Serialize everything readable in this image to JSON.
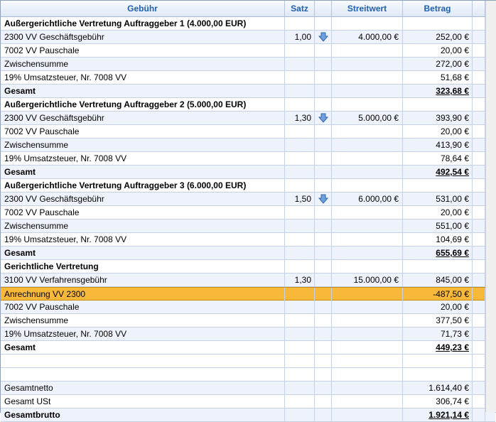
{
  "header": {
    "col_gebuehr": "Gebühr",
    "col_satz": "Satz",
    "col_streitwert": "Streitwert",
    "col_betrag": "Betrag"
  },
  "rows": [
    {
      "type": "section",
      "gebuehr": "Außergerichtliche Vertretung Auftraggeber 1 (4.000,00 EUR)",
      "satz": "",
      "arrow": false,
      "streitwert": "",
      "betrag": ""
    },
    {
      "type": "item",
      "gebuehr": "2300 VV Geschäftsgebühr",
      "satz": "1,00",
      "arrow": true,
      "streitwert": "4.000,00 €",
      "betrag": "252,00 €"
    },
    {
      "type": "item",
      "gebuehr": "7002 VV Pauschale",
      "satz": "",
      "arrow": false,
      "streitwert": "",
      "betrag": "20,00 €"
    },
    {
      "type": "item",
      "gebuehr": "Zwischensumme",
      "satz": "",
      "arrow": false,
      "streitwert": "",
      "betrag": "272,00 €"
    },
    {
      "type": "item",
      "gebuehr": "19% Umsatzsteuer, Nr. 7008 VV",
      "satz": "",
      "arrow": false,
      "streitwert": "",
      "betrag": "51,68 €"
    },
    {
      "type": "total",
      "gebuehr": "Gesamt",
      "satz": "",
      "arrow": false,
      "streitwert": "",
      "betrag": "323,68 €"
    },
    {
      "type": "section",
      "gebuehr": "Außergerichtliche Vertretung Auftraggeber 2 (5.000,00 EUR)",
      "satz": "",
      "arrow": false,
      "streitwert": "",
      "betrag": ""
    },
    {
      "type": "item",
      "gebuehr": "2300 VV Geschäftsgebühr",
      "satz": "1,30",
      "arrow": true,
      "streitwert": "5.000,00 €",
      "betrag": "393,90 €"
    },
    {
      "type": "item",
      "gebuehr": "7002 VV Pauschale",
      "satz": "",
      "arrow": false,
      "streitwert": "",
      "betrag": "20,00 €"
    },
    {
      "type": "item",
      "gebuehr": "Zwischensumme",
      "satz": "",
      "arrow": false,
      "streitwert": "",
      "betrag": "413,90 €"
    },
    {
      "type": "item",
      "gebuehr": "19% Umsatzsteuer, Nr. 7008 VV",
      "satz": "",
      "arrow": false,
      "streitwert": "",
      "betrag": "78,64 €"
    },
    {
      "type": "total",
      "gebuehr": "Gesamt",
      "satz": "",
      "arrow": false,
      "streitwert": "",
      "betrag": "492,54 €"
    },
    {
      "type": "section",
      "gebuehr": "Außergerichtliche Vertretung Auftraggeber 3 (6.000,00 EUR)",
      "satz": "",
      "arrow": false,
      "streitwert": "",
      "betrag": ""
    },
    {
      "type": "item",
      "gebuehr": "2300 VV Geschäftsgebühr",
      "satz": "1,50",
      "arrow": true,
      "streitwert": "6.000,00 €",
      "betrag": "531,00 €"
    },
    {
      "type": "item",
      "gebuehr": "7002 VV Pauschale",
      "satz": "",
      "arrow": false,
      "streitwert": "",
      "betrag": "20,00 €"
    },
    {
      "type": "item",
      "gebuehr": "Zwischensumme",
      "satz": "",
      "arrow": false,
      "streitwert": "",
      "betrag": "551,00 €"
    },
    {
      "type": "item",
      "gebuehr": "19% Umsatzsteuer, Nr. 7008 VV",
      "satz": "",
      "arrow": false,
      "streitwert": "",
      "betrag": "104,69 €"
    },
    {
      "type": "total",
      "gebuehr": "Gesamt",
      "satz": "",
      "arrow": false,
      "streitwert": "",
      "betrag": "655,69 €"
    },
    {
      "type": "section",
      "gebuehr": "Gerichtliche Vertretung",
      "satz": "",
      "arrow": false,
      "streitwert": "",
      "betrag": ""
    },
    {
      "type": "item",
      "gebuehr": "3100 VV Verfahrensgebühr",
      "satz": "1,30",
      "arrow": false,
      "streitwert": "15.000,00 €",
      "betrag": "845,00 €"
    },
    {
      "type": "highlight",
      "gebuehr": "Anrechnung VV 2300",
      "satz": "",
      "arrow": false,
      "streitwert": "",
      "betrag": "-487,50 €"
    },
    {
      "type": "item",
      "gebuehr": "7002 VV Pauschale",
      "satz": "",
      "arrow": false,
      "streitwert": "",
      "betrag": "20,00 €"
    },
    {
      "type": "item",
      "gebuehr": "Zwischensumme",
      "satz": "",
      "arrow": false,
      "streitwert": "",
      "betrag": "377,50 €"
    },
    {
      "type": "item",
      "gebuehr": "19% Umsatzsteuer, Nr. 7008 VV",
      "satz": "",
      "arrow": false,
      "streitwert": "",
      "betrag": "71,73 €"
    },
    {
      "type": "total",
      "gebuehr": "Gesamt",
      "satz": "",
      "arrow": false,
      "streitwert": "",
      "betrag": "449,23 €"
    },
    {
      "type": "blank",
      "gebuehr": "",
      "satz": "",
      "arrow": false,
      "streitwert": "",
      "betrag": ""
    },
    {
      "type": "blank",
      "gebuehr": "",
      "satz": "",
      "arrow": false,
      "streitwert": "",
      "betrag": ""
    },
    {
      "type": "summary",
      "gebuehr": "Gesamtnetto",
      "satz": "",
      "arrow": false,
      "streitwert": "",
      "betrag": "1.614,40 €"
    },
    {
      "type": "summary",
      "gebuehr": "Gesamt USt",
      "satz": "",
      "arrow": false,
      "streitwert": "",
      "betrag": "306,74 €"
    },
    {
      "type": "grandtotal",
      "gebuehr": "Gesamtbrutto",
      "satz": "",
      "arrow": false,
      "streitwert": "",
      "betrag": "1.921,14 €"
    }
  ],
  "icons": {
    "rate_arrow": "arrow-down-icon"
  },
  "colors": {
    "header_text": "#1f5fb0",
    "highlight": "#f8b93b",
    "row_alt": "#eef3fb"
  }
}
